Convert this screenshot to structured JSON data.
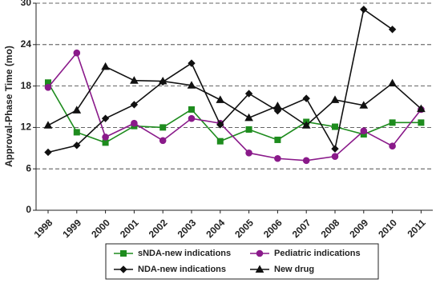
{
  "chart_data": {
    "type": "line",
    "y_label": "Approval-Phase Time (mo)",
    "categories": [
      "1998",
      "1999",
      "2000",
      "2001",
      "2002",
      "2003",
      "2004",
      "2005",
      "2006",
      "2007",
      "2008",
      "2009",
      "2010",
      "2011"
    ],
    "ylim": [
      0,
      30
    ],
    "yticks": [
      0,
      6,
      12,
      18,
      24,
      30
    ],
    "grid": true,
    "legend": "bottom",
    "series": [
      {
        "name": "sNDA-new indications",
        "color": "#1e8c1e",
        "marker": "square",
        "values": [
          18.5,
          11.3,
          9.8,
          12.2,
          12,
          14.6,
          10,
          11.7,
          10.2,
          12.8,
          12.1,
          11,
          12.7,
          12.7
        ]
      },
      {
        "name": "Pediatric indications",
        "color": "#8a1a8a",
        "marker": "circle",
        "values": [
          17.8,
          22.8,
          10.6,
          12.6,
          10.1,
          13.3,
          12.6,
          8.3,
          7.5,
          7.2,
          7.8,
          11.5,
          9.3,
          14.6
        ]
      },
      {
        "name": "NDA-new indications",
        "color": "#111111",
        "marker": "diamond",
        "values": [
          8.4,
          9.4,
          13.3,
          15.3,
          18.6,
          21.3,
          12.4,
          16.9,
          14.4,
          16.2,
          8.9,
          29.1,
          26.2,
          null
        ]
      },
      {
        "name": "New drug",
        "color": "#111111",
        "marker": "triangle",
        "values": [
          12.3,
          14.5,
          20.8,
          18.8,
          18.7,
          18.1,
          16,
          13.4,
          15.1,
          12.3,
          16,
          15.2,
          18.4,
          14.7
        ]
      }
    ]
  }
}
